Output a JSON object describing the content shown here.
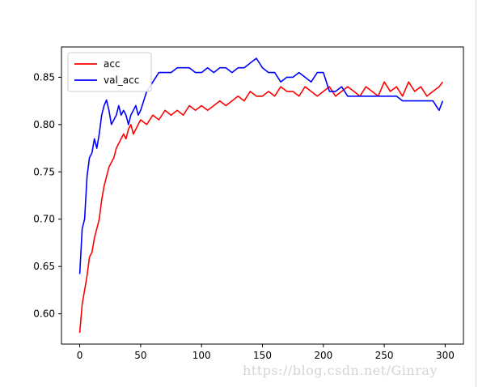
{
  "chart_data": {
    "type": "line",
    "title": "",
    "xlabel": "",
    "ylabel": "",
    "xlim": [
      -15,
      315
    ],
    "ylim": [
      0.568,
      0.882
    ],
    "xticks": [
      0,
      50,
      100,
      150,
      200,
      250,
      300
    ],
    "yticks": [
      0.6,
      0.65,
      0.7,
      0.75,
      0.8,
      0.85
    ],
    "xtick_labels": [
      "0",
      "50",
      "100",
      "150",
      "200",
      "250",
      "300"
    ],
    "ytick_labels": [
      "0.60",
      "0.65",
      "0.70",
      "0.75",
      "0.80",
      "0.85"
    ],
    "grid": false,
    "legend_position": "top-left",
    "series": [
      {
        "name": "acc",
        "color": "#ff0000",
        "x": [
          0,
          2,
          4,
          6,
          8,
          10,
          12,
          14,
          16,
          18,
          20,
          22,
          24,
          26,
          28,
          30,
          32,
          34,
          36,
          38,
          40,
          42,
          44,
          46,
          48,
          50,
          55,
          60,
          65,
          70,
          75,
          80,
          85,
          90,
          95,
          100,
          105,
          110,
          115,
          120,
          125,
          130,
          135,
          140,
          145,
          150,
          155,
          160,
          165,
          170,
          175,
          180,
          185,
          190,
          195,
          200,
          205,
          210,
          215,
          220,
          225,
          230,
          235,
          240,
          245,
          250,
          255,
          260,
          265,
          270,
          275,
          280,
          285,
          290,
          295,
          298
        ],
        "values": [
          0.58,
          0.61,
          0.625,
          0.64,
          0.66,
          0.665,
          0.68,
          0.69,
          0.7,
          0.72,
          0.735,
          0.745,
          0.755,
          0.76,
          0.765,
          0.775,
          0.78,
          0.785,
          0.79,
          0.785,
          0.795,
          0.8,
          0.79,
          0.795,
          0.8,
          0.805,
          0.8,
          0.81,
          0.805,
          0.815,
          0.81,
          0.815,
          0.81,
          0.82,
          0.815,
          0.82,
          0.815,
          0.82,
          0.825,
          0.82,
          0.825,
          0.83,
          0.825,
          0.835,
          0.83,
          0.83,
          0.835,
          0.83,
          0.84,
          0.835,
          0.835,
          0.83,
          0.84,
          0.835,
          0.83,
          0.835,
          0.84,
          0.83,
          0.835,
          0.84,
          0.835,
          0.83,
          0.84,
          0.835,
          0.83,
          0.845,
          0.835,
          0.84,
          0.83,
          0.845,
          0.835,
          0.84,
          0.83,
          0.835,
          0.84,
          0.845
        ]
      },
      {
        "name": "val_acc",
        "color": "#0000ff",
        "x": [
          0,
          2,
          4,
          6,
          8,
          10,
          12,
          14,
          16,
          18,
          20,
          22,
          24,
          26,
          28,
          30,
          32,
          34,
          36,
          38,
          40,
          42,
          44,
          46,
          48,
          50,
          55,
          60,
          65,
          70,
          75,
          80,
          85,
          90,
          95,
          100,
          105,
          110,
          115,
          120,
          125,
          130,
          135,
          140,
          145,
          150,
          155,
          160,
          165,
          170,
          175,
          180,
          185,
          190,
          195,
          200,
          205,
          210,
          215,
          220,
          225,
          230,
          235,
          240,
          245,
          250,
          255,
          260,
          265,
          270,
          275,
          280,
          285,
          290,
          295,
          298
        ],
        "values": [
          0.642,
          0.69,
          0.7,
          0.745,
          0.765,
          0.77,
          0.785,
          0.775,
          0.79,
          0.81,
          0.82,
          0.826,
          0.815,
          0.8,
          0.805,
          0.81,
          0.82,
          0.81,
          0.815,
          0.81,
          0.8,
          0.81,
          0.815,
          0.82,
          0.81,
          0.815,
          0.835,
          0.845,
          0.855,
          0.855,
          0.855,
          0.86,
          0.86,
          0.86,
          0.855,
          0.855,
          0.86,
          0.855,
          0.86,
          0.86,
          0.855,
          0.86,
          0.86,
          0.865,
          0.87,
          0.86,
          0.855,
          0.855,
          0.845,
          0.85,
          0.85,
          0.855,
          0.85,
          0.845,
          0.855,
          0.855,
          0.835,
          0.835,
          0.84,
          0.83,
          0.83,
          0.83,
          0.83,
          0.83,
          0.83,
          0.83,
          0.83,
          0.83,
          0.825,
          0.825,
          0.825,
          0.825,
          0.825,
          0.825,
          0.815,
          0.825
        ]
      }
    ]
  },
  "watermark": "https://blog.csdn.net/Ginray"
}
